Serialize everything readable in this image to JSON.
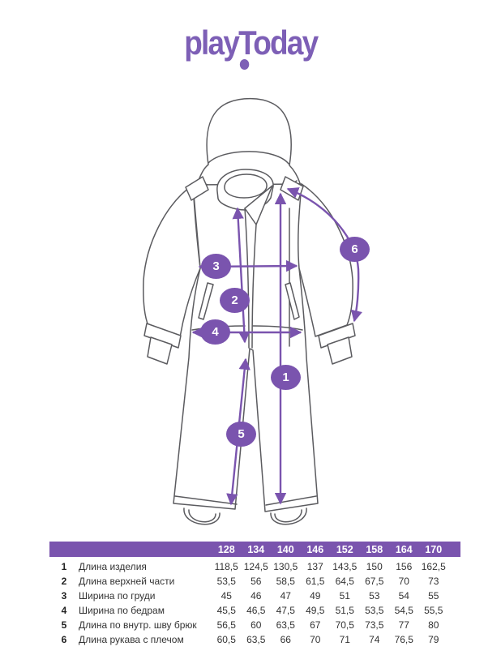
{
  "brand": {
    "logo_play": "play",
    "logo_today": "Today"
  },
  "colors": {
    "brand_purple": "#7d5fb6",
    "accent_purple": "#7a54ae",
    "line_gray": "#5b5b5f",
    "text": "#333333"
  },
  "diagram": {
    "badges": [
      "1",
      "2",
      "3",
      "4",
      "5",
      "6"
    ]
  },
  "table": {
    "sizes": [
      "128",
      "134",
      "140",
      "146",
      "152",
      "158",
      "164",
      "170"
    ],
    "rows": [
      {
        "num": "1",
        "label": "Длина изделия",
        "values": [
          "118,5",
          "124,5",
          "130,5",
          "137",
          "143,5",
          "150",
          "156",
          "162,5"
        ]
      },
      {
        "num": "2",
        "label": "Длина верхней части",
        "values": [
          "53,5",
          "56",
          "58,5",
          "61,5",
          "64,5",
          "67,5",
          "70",
          "73"
        ]
      },
      {
        "num": "3",
        "label": "Ширина по груди",
        "values": [
          "45",
          "46",
          "47",
          "49",
          "51",
          "53",
          "54",
          "55"
        ]
      },
      {
        "num": "4",
        "label": "Ширина по бедрам",
        "values": [
          "45,5",
          "46,5",
          "47,5",
          "49,5",
          "51,5",
          "53,5",
          "54,5",
          "55,5"
        ]
      },
      {
        "num": "5",
        "label": "Длина по внутр. шву брюк",
        "values": [
          "56,5",
          "60",
          "63,5",
          "67",
          "70,5",
          "73,5",
          "77",
          "80"
        ]
      },
      {
        "num": "6",
        "label": "Длина рукава с плечом",
        "values": [
          "60,5",
          "63,5",
          "66",
          "70",
          "71",
          "74",
          "76,5",
          "79"
        ]
      }
    ]
  }
}
